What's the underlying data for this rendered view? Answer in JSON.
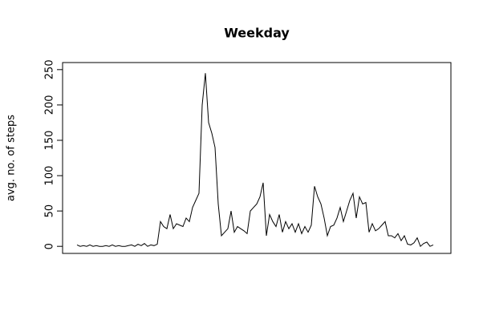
{
  "chart_data": {
    "type": "line",
    "title": "Weekday",
    "y_label": "avg. no. of steps",
    "values": [
      2,
      0,
      1,
      0,
      2,
      0,
      1,
      0,
      0,
      1,
      0,
      2,
      0,
      1,
      0,
      0,
      1,
      2,
      0,
      3,
      1,
      4,
      0,
      2,
      1,
      3,
      35,
      28,
      25,
      45,
      25,
      32,
      30,
      28,
      40,
      35,
      55,
      65,
      75,
      200,
      245,
      175,
      160,
      140,
      60,
      15,
      20,
      25,
      50,
      20,
      28,
      25,
      22,
      18,
      50,
      55,
      60,
      70,
      90,
      15,
      45,
      35,
      28,
      45,
      20,
      35,
      25,
      32,
      20,
      32,
      18,
      28,
      20,
      30,
      85,
      70,
      60,
      40,
      15,
      28,
      30,
      40,
      55,
      35,
      50,
      65,
      75,
      40,
      70,
      60,
      62,
      20,
      32,
      22,
      25,
      30,
      35,
      15,
      15,
      12,
      18,
      8,
      15,
      3,
      2,
      5,
      12,
      0,
      4,
      6,
      0,
      2
    ],
    "color": "#000000",
    "ylim": [
      -10,
      260
    ],
    "yticks": [
      0,
      50,
      100,
      150,
      200,
      250
    ]
  }
}
